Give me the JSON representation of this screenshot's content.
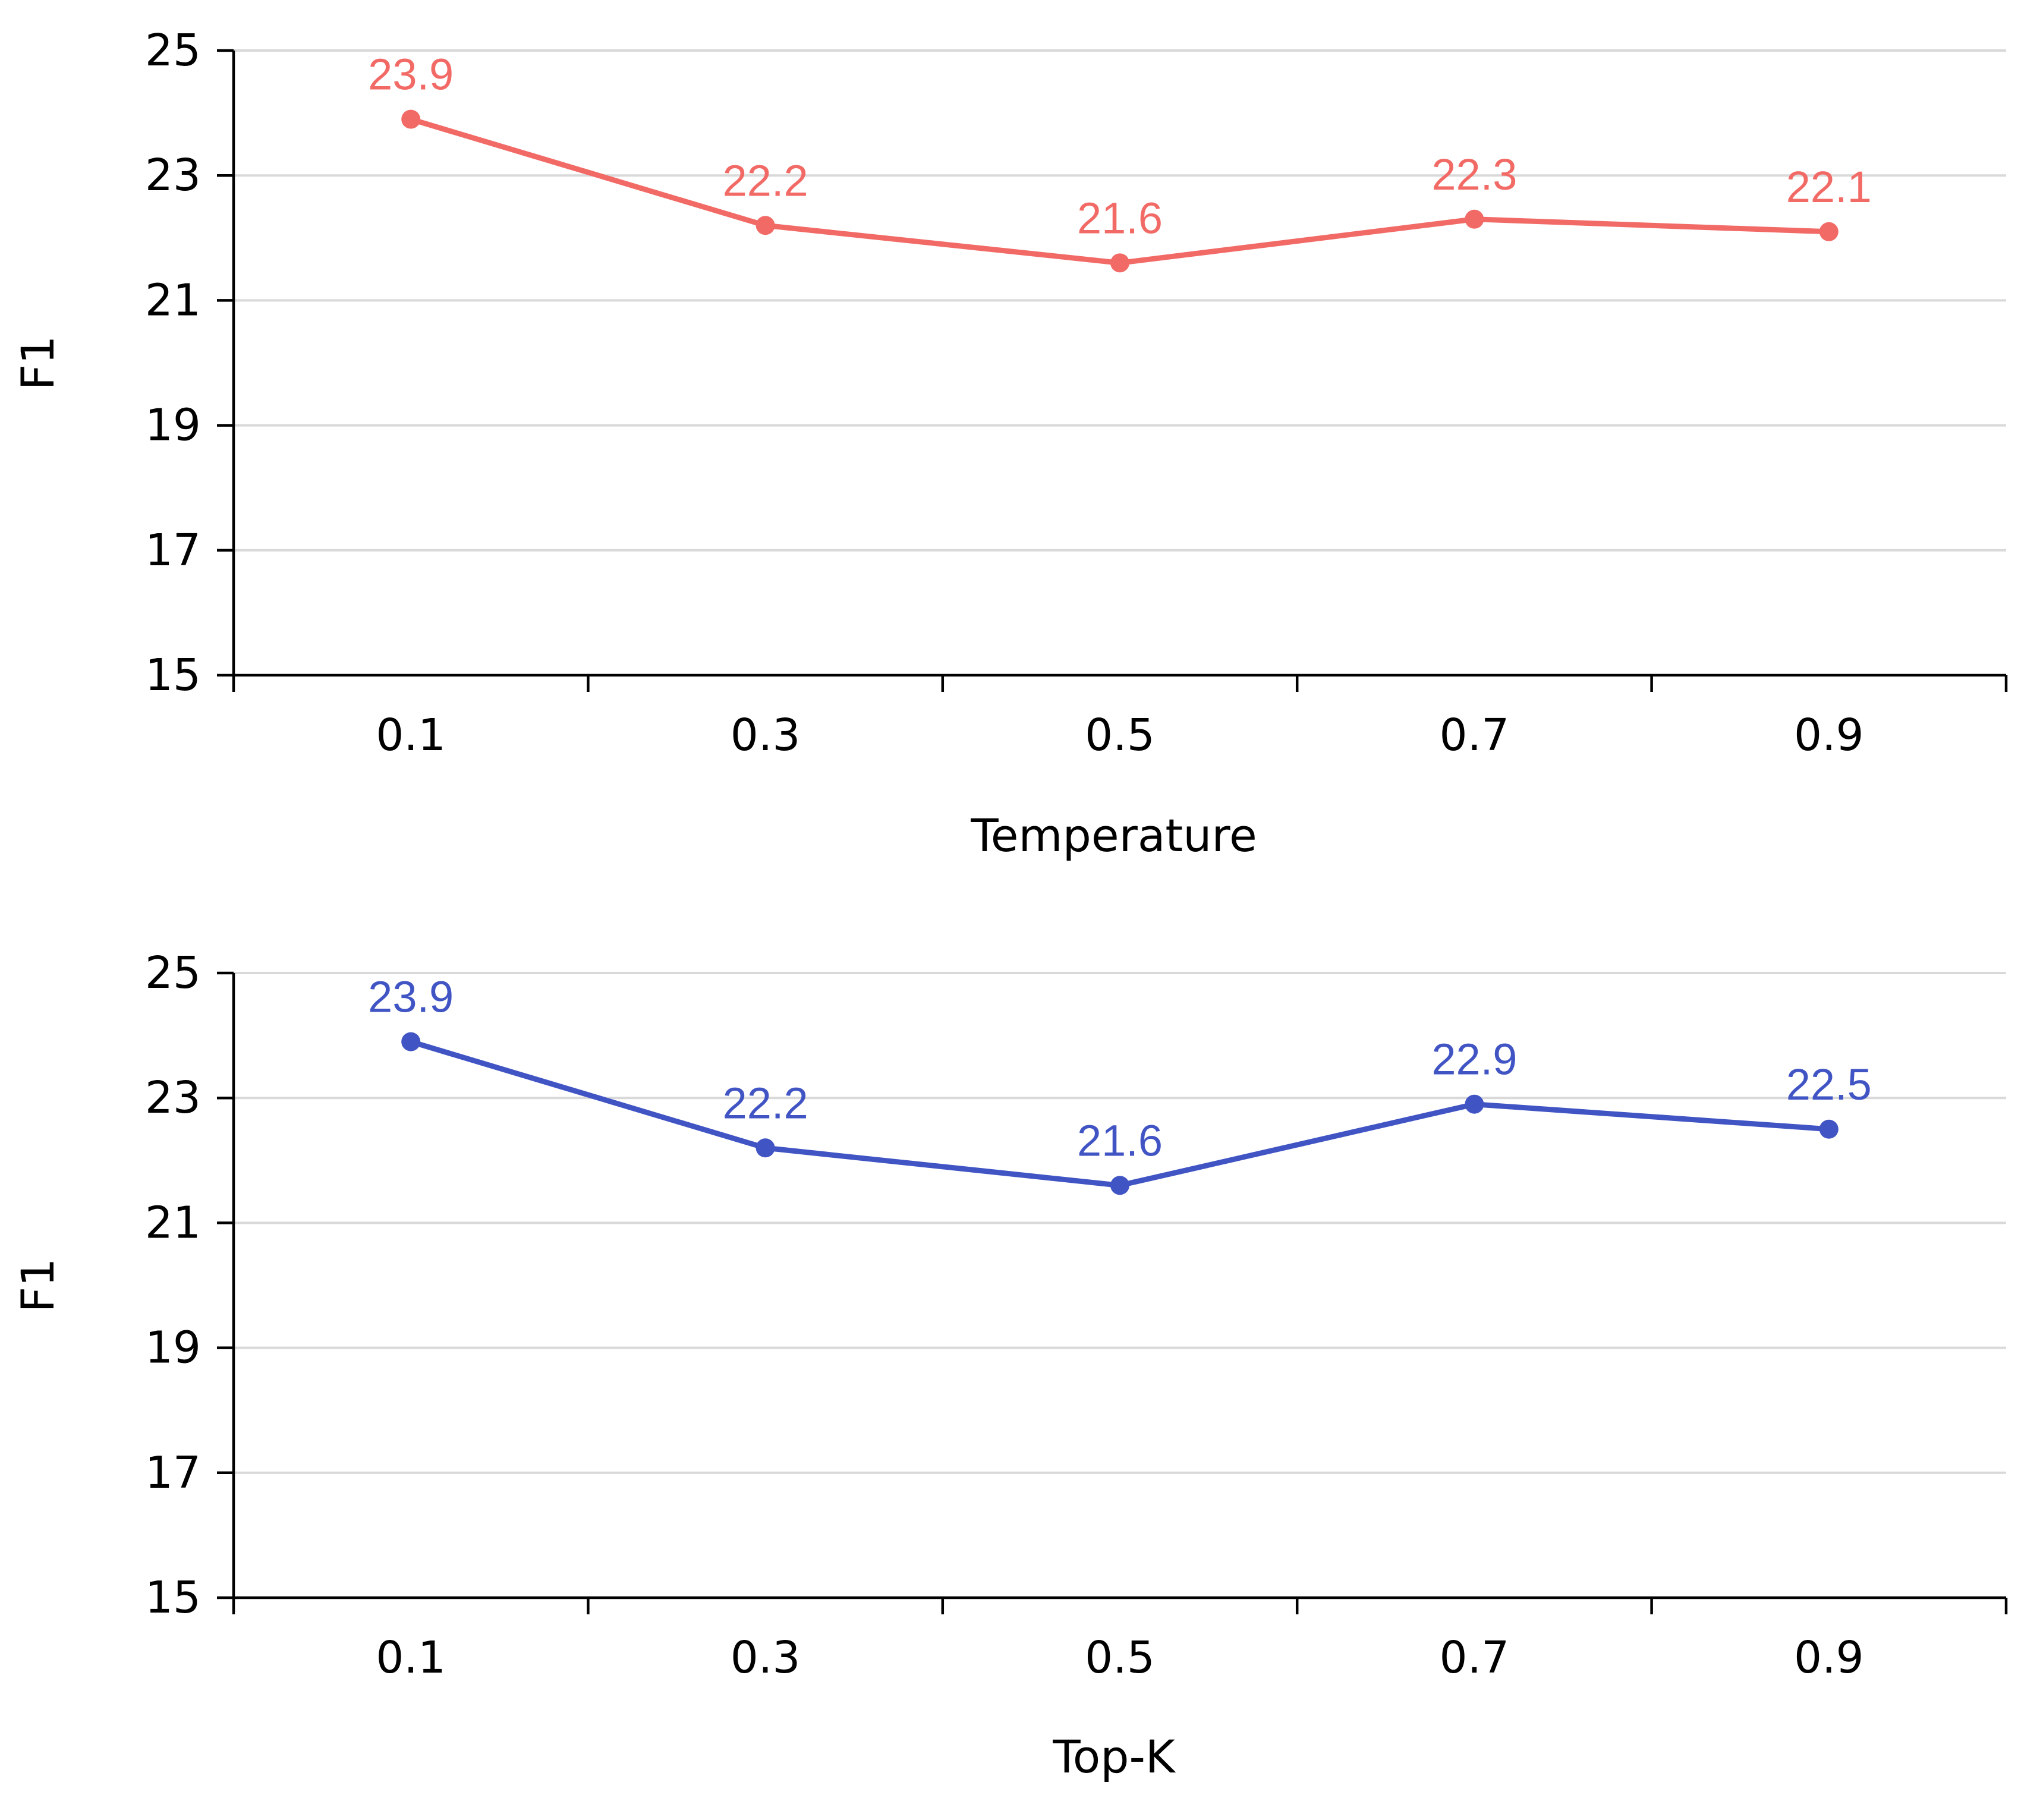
{
  "chart_data": [
    {
      "type": "line",
      "title": "",
      "xlabel": "Temperature",
      "ylabel": "F1",
      "categories": [
        "0.1",
        "0.3",
        "0.5",
        "0.7",
        "0.9"
      ],
      "series": [
        {
          "name": "Temperature",
          "color": "#F26A66",
          "values": [
            23.9,
            22.2,
            21.6,
            22.3,
            22.1
          ]
        }
      ],
      "data_labels": [
        "23.9",
        "22.2",
        "21.6",
        "22.3",
        "22.1"
      ],
      "ylim": [
        15,
        25
      ],
      "yticks": [
        15,
        17,
        19,
        21,
        23,
        25
      ],
      "ytick_labels": [
        "15",
        "17",
        "19",
        "21",
        "23",
        "25"
      ],
      "grid": true,
      "legend": "none"
    },
    {
      "type": "line",
      "title": "",
      "xlabel": "Top-K",
      "ylabel": "F1",
      "categories": [
        "0.1",
        "0.3",
        "0.5",
        "0.7",
        "0.9"
      ],
      "series": [
        {
          "name": "Top-K",
          "color": "#4154C4",
          "values": [
            23.9,
            22.2,
            21.6,
            22.9,
            22.5
          ]
        }
      ],
      "data_labels": [
        "23.9",
        "22.2",
        "21.6",
        "22.9",
        "22.5"
      ],
      "ylim": [
        15,
        25
      ],
      "yticks": [
        15,
        17,
        19,
        21,
        23,
        25
      ],
      "ytick_labels": [
        "15",
        "17",
        "19",
        "21",
        "23",
        "25"
      ],
      "grid": true,
      "legend": "none"
    }
  ]
}
